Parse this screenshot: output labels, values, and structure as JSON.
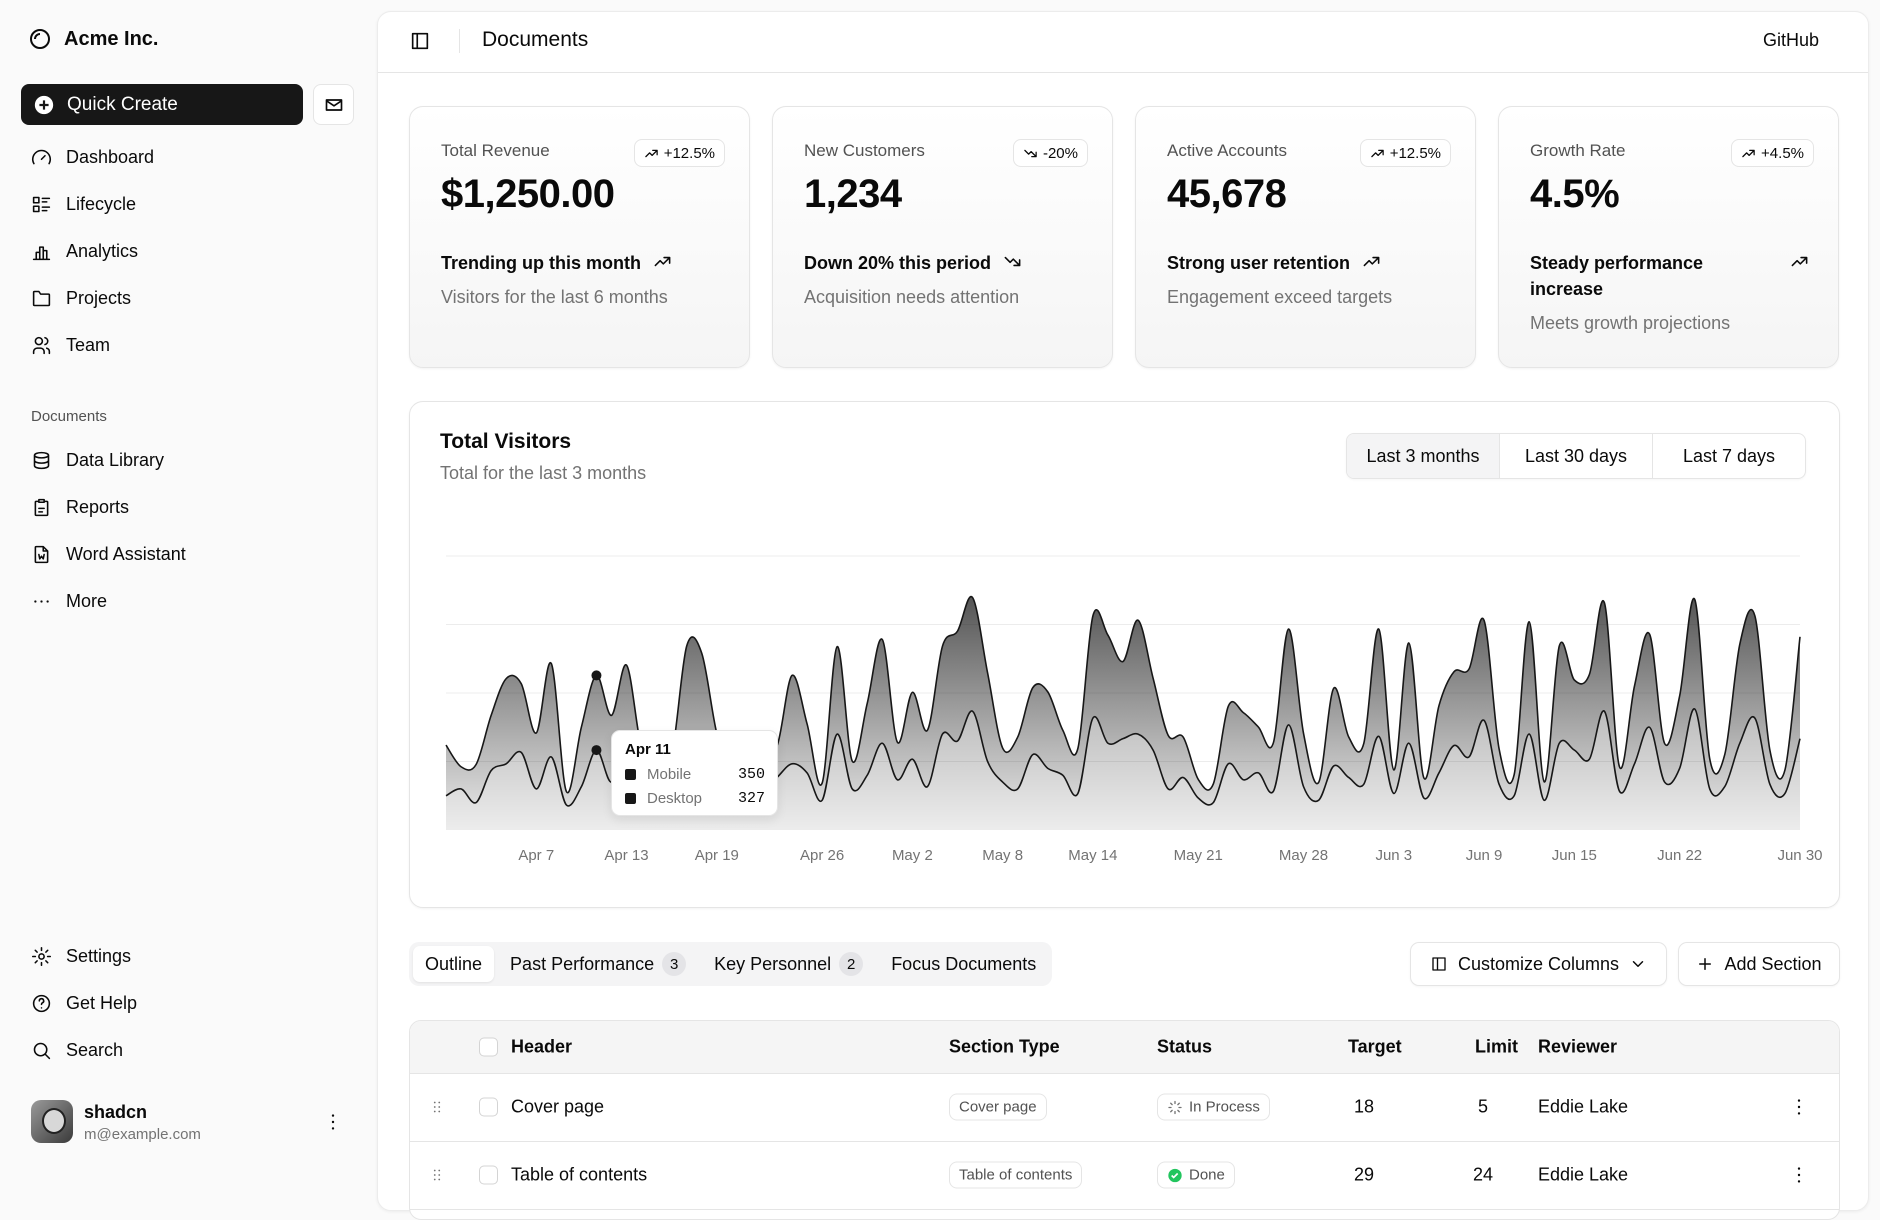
{
  "sidebar": {
    "brand": "Acme Inc.",
    "quick_create": "Quick Create",
    "nav": [
      "Dashboard",
      "Lifecycle",
      "Analytics",
      "Projects",
      "Team"
    ],
    "documents_label": "Documents",
    "documents": [
      "Data Library",
      "Reports",
      "Word Assistant",
      "More"
    ],
    "secondary": [
      "Settings",
      "Get Help",
      "Search"
    ],
    "user": {
      "name": "shadcn",
      "email": "m@example.com"
    }
  },
  "header": {
    "title": "Documents",
    "github": "GitHub"
  },
  "cards": [
    {
      "label": "Total Revenue",
      "value": "$1,250.00",
      "badge": "+12.5%",
      "trend": "up",
      "footer": "Trending up this month",
      "note": "Visitors for the last 6 months"
    },
    {
      "label": "New Customers",
      "value": "1,234",
      "badge": "-20%",
      "trend": "down",
      "footer": "Down 20% this period",
      "note": "Acquisition needs attention"
    },
    {
      "label": "Active Accounts",
      "value": "45,678",
      "badge": "+12.5%",
      "trend": "up",
      "footer": "Strong user retention",
      "note": "Engagement exceed targets"
    },
    {
      "label": "Growth Rate",
      "value": "4.5%",
      "badge": "+4.5%",
      "trend": "up",
      "footer": "Steady performance increase",
      "note": "Meets growth projections"
    }
  ],
  "chart_data": {
    "type": "area",
    "title": "Total Visitors",
    "subtitle": "Total for the last 3 months",
    "ranges": [
      "Last 3 months",
      "Last 30 days",
      "Last 7 days"
    ],
    "stacked": true,
    "grid": true,
    "show_ytick_labels": false,
    "ylim": [
      0,
      1200
    ],
    "yticks": [
      0,
      300,
      600,
      900,
      1200
    ],
    "categories": [
      null,
      null,
      null,
      null,
      null,
      null,
      "Apr 7",
      null,
      null,
      null,
      null,
      null,
      "Apr 13",
      null,
      null,
      null,
      null,
      null,
      "Apr 19",
      null,
      null,
      null,
      null,
      null,
      null,
      "Apr 26",
      null,
      null,
      null,
      null,
      null,
      "May 2",
      null,
      null,
      null,
      null,
      null,
      "May 8",
      null,
      null,
      null,
      null,
      null,
      "May 14",
      null,
      null,
      null,
      null,
      null,
      null,
      "May 21",
      null,
      null,
      null,
      null,
      null,
      null,
      "May 28",
      null,
      null,
      null,
      null,
      null,
      "Jun 3",
      null,
      null,
      null,
      null,
      null,
      "Jun 9",
      null,
      null,
      null,
      null,
      null,
      "Jun 15",
      null,
      null,
      null,
      null,
      null,
      null,
      "Jun 22",
      null,
      null,
      null,
      null,
      null,
      null,
      null,
      "Jun 30"
    ],
    "series": [
      {
        "name": "Mobile",
        "color": "#171717",
        "values": [
          150,
          180,
          120,
          260,
          290,
          340,
          180,
          320,
          110,
          190,
          350,
          210,
          380,
          220,
          170,
          190,
          360,
          410,
          180,
          150,
          200,
          170,
          230,
          290,
          250,
          130,
          420,
          180,
          240,
          380,
          220,
          310,
          190,
          420,
          390,
          520,
          300,
          210,
          180,
          330,
          270,
          240,
          160,
          490,
          380,
          400,
          420,
          350,
          180,
          230,
          140,
          120,
          290,
          220,
          250,
          170,
          460,
          190,
          130,
          280,
          230,
          200,
          410,
          160,
          380,
          140,
          250,
          370,
          320,
          480,
          200,
          150,
          420,
          130,
          380,
          350,
          310,
          520,
          170,
          290,
          450,
          210,
          270,
          530,
          180,
          190,
          380,
          490,
          200,
          160,
          400
        ]
      },
      {
        "name": "Desktop",
        "color": "#171717",
        "values": [
          222,
          97,
          167,
          242,
          373,
          301,
          245,
          409,
          59,
          261,
          327,
          292,
          342,
          137,
          120,
          138,
          446,
          364,
          243,
          89,
          137,
          224,
          138,
          387,
          215,
          75,
          383,
          122,
          315,
          454,
          165,
          293,
          247,
          385,
          481,
          498,
          388,
          149,
          227,
          293,
          335,
          197,
          197,
          448,
          473,
          338,
          499,
          315,
          235,
          177,
          82,
          81,
          252,
          294,
          201,
          213,
          420,
          233,
          78,
          340,
          178,
          178,
          470,
          103,
          439,
          88,
          294,
          323,
          385,
          438,
          155,
          92,
          492,
          81,
          426,
          307,
          371,
          475,
          107,
          341,
          408,
          169,
          317,
          480,
          132,
          141,
          434,
          448,
          149,
          103,
          446
        ]
      }
    ],
    "tooltip": {
      "date": "Apr 11"
    }
  },
  "table": {
    "tabs": [
      {
        "label": "Outline"
      },
      {
        "label": "Past Performance",
        "count": 3
      },
      {
        "label": "Key Personnel",
        "count": 2
      },
      {
        "label": "Focus Documents"
      }
    ],
    "customize": "Customize Columns",
    "add": "Add Section",
    "columns": [
      "Header",
      "Section Type",
      "Status",
      "Target",
      "Limit",
      "Reviewer"
    ],
    "rows": [
      {
        "header": "Cover page",
        "type": "Cover page",
        "status": "In Process",
        "status_icon": "spinner",
        "target": 18,
        "limit": 5,
        "reviewer": "Eddie Lake"
      },
      {
        "header": "Table of contents",
        "type": "Table of contents",
        "status": "Done",
        "status_icon": "check",
        "target": 29,
        "limit": 24,
        "reviewer": "Eddie Lake"
      }
    ]
  }
}
